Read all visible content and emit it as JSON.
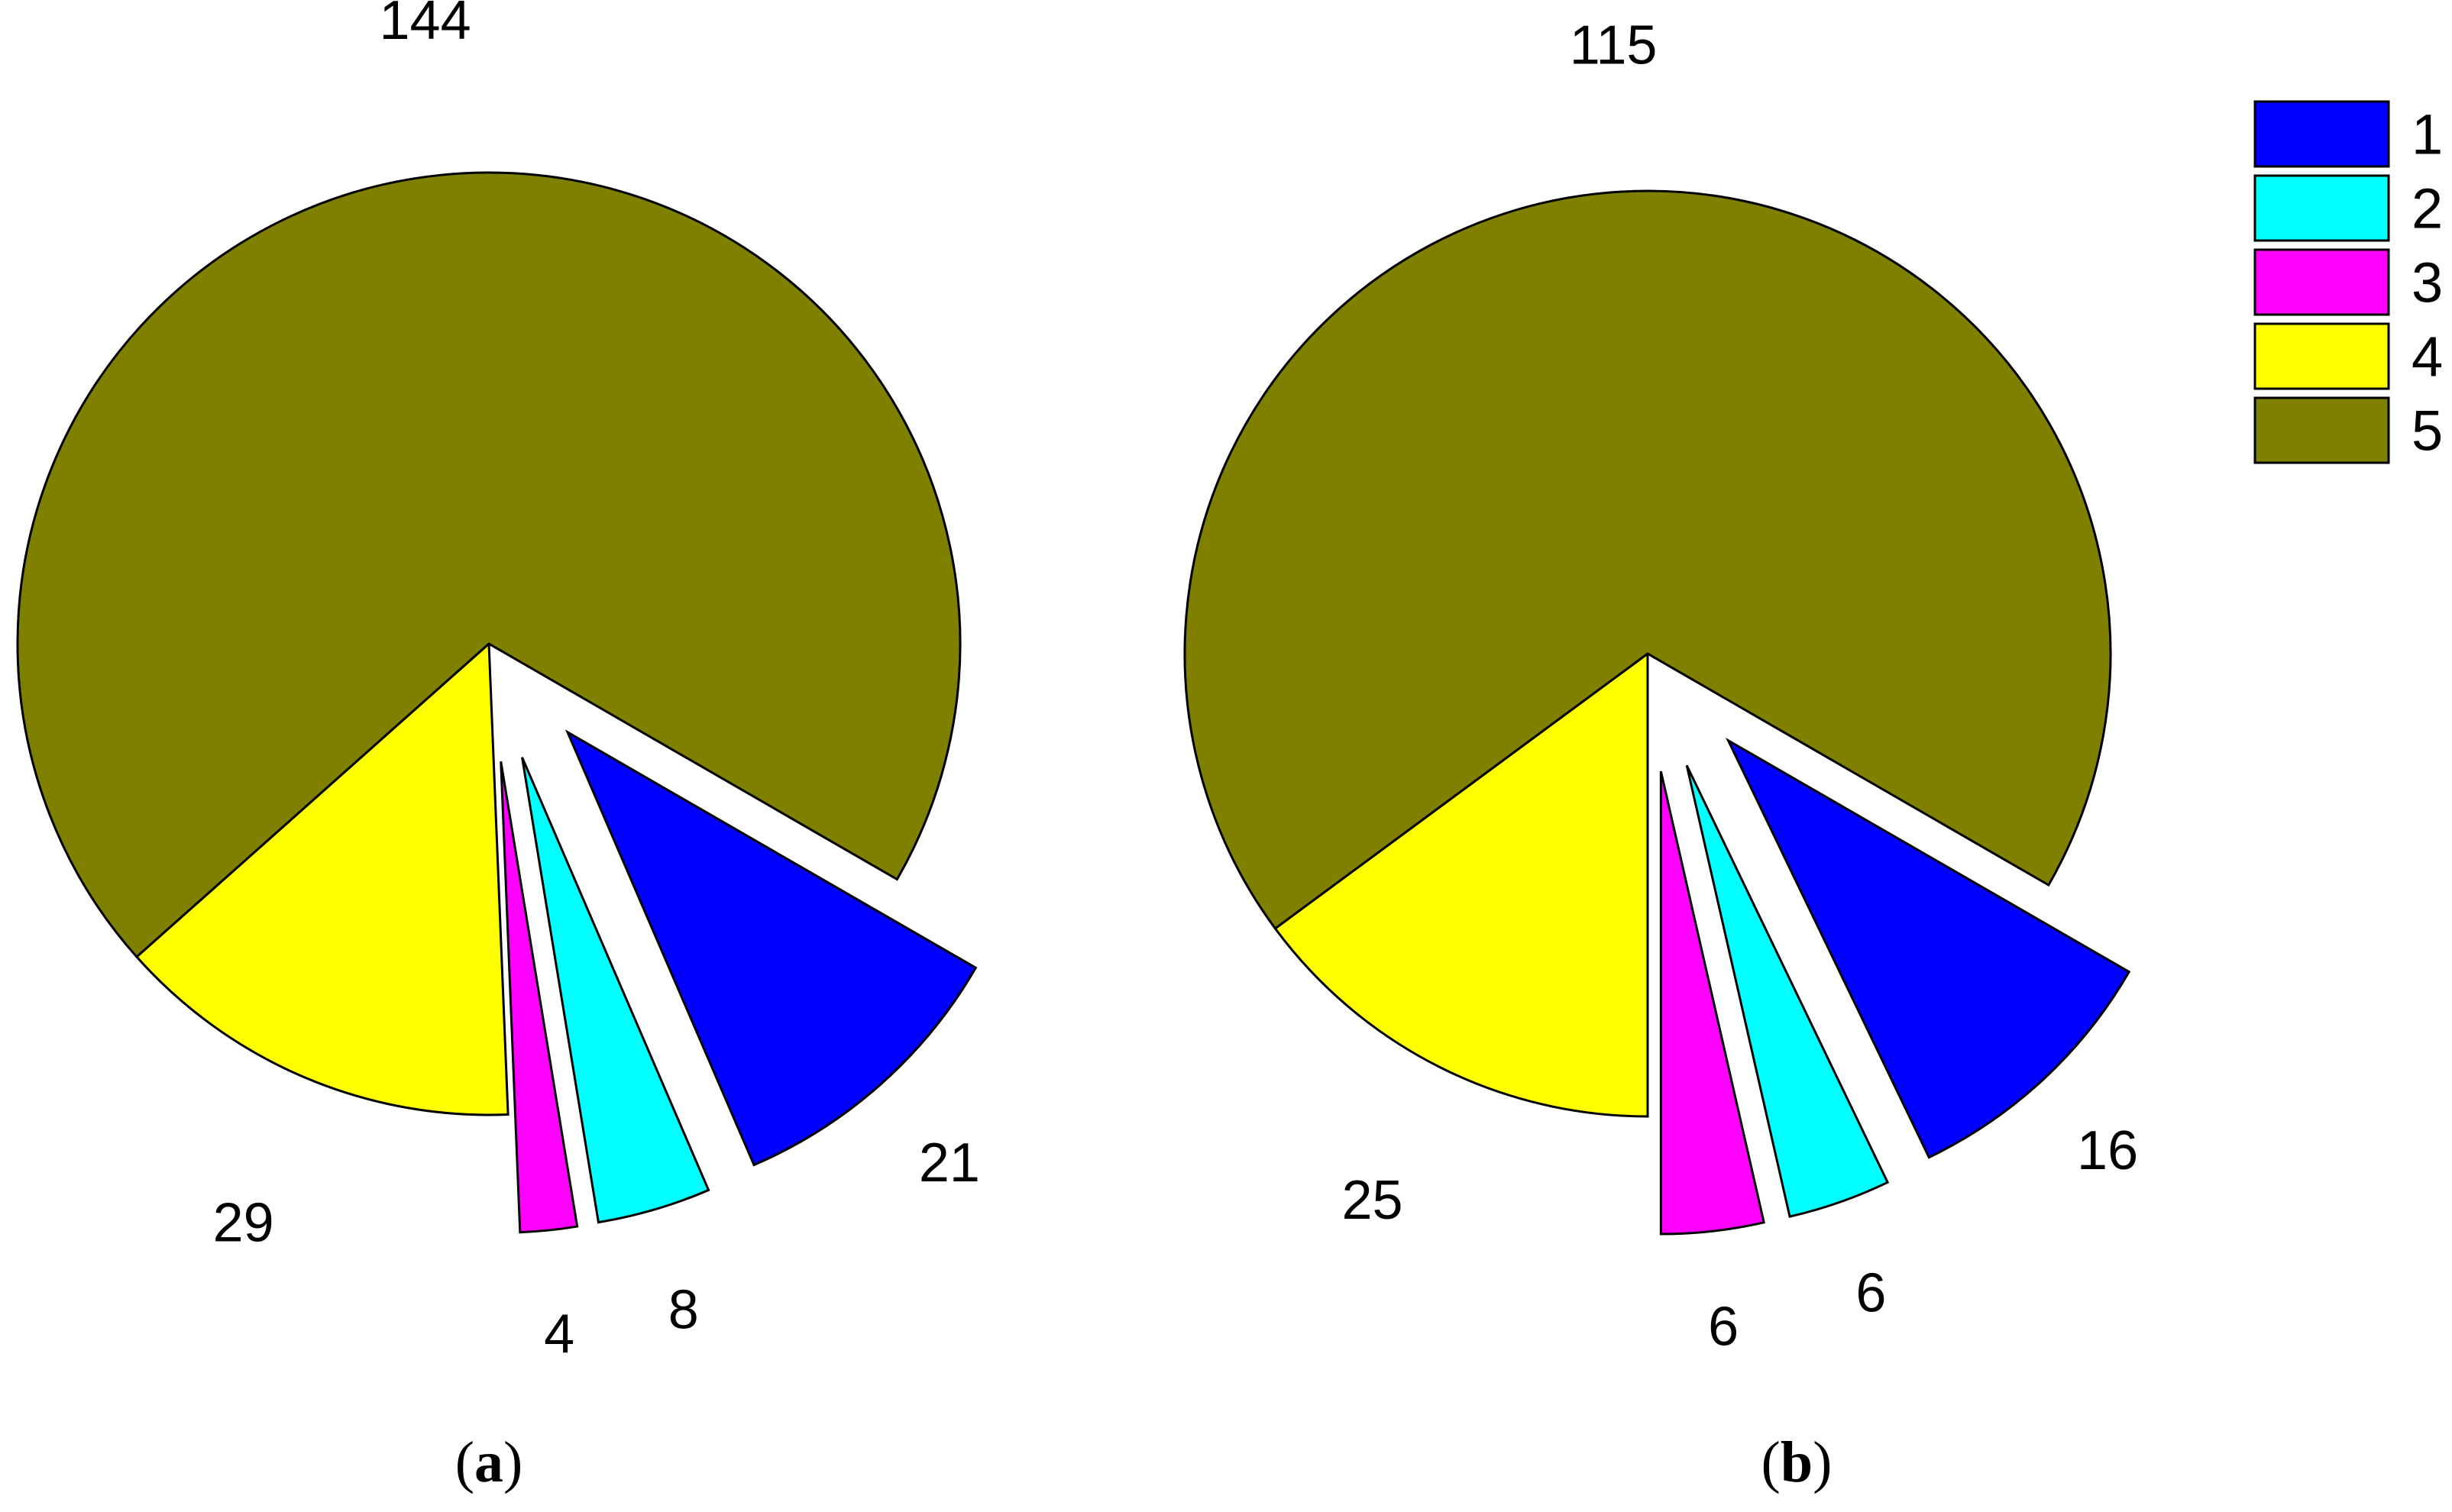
{
  "chart_data": [
    {
      "type": "pie",
      "caption": "a",
      "categories": [
        "1",
        "2",
        "3",
        "4",
        "5"
      ],
      "values": [
        21,
        8,
        4,
        29,
        144
      ],
      "labels": [
        "21",
        "8",
        "4",
        "29",
        "144"
      ],
      "exploded": [
        "1",
        "2",
        "3"
      ]
    },
    {
      "type": "pie",
      "caption": "b",
      "categories": [
        "1",
        "2",
        "3",
        "4",
        "5"
      ],
      "values": [
        16,
        6,
        6,
        25,
        115
      ],
      "labels": [
        "16",
        "6",
        "6",
        "25",
        "115"
      ],
      "exploded": [
        "1",
        "2",
        "3"
      ]
    }
  ],
  "legend": {
    "placement": "top-right",
    "items": [
      {
        "label": "1",
        "color": "#0000FF"
      },
      {
        "label": "2",
        "color": "#00FFFF"
      },
      {
        "label": "3",
        "color": "#FF00FF"
      },
      {
        "label": "4",
        "color": "#FFFF00"
      },
      {
        "label": "5",
        "color": "#808000"
      }
    ]
  }
}
